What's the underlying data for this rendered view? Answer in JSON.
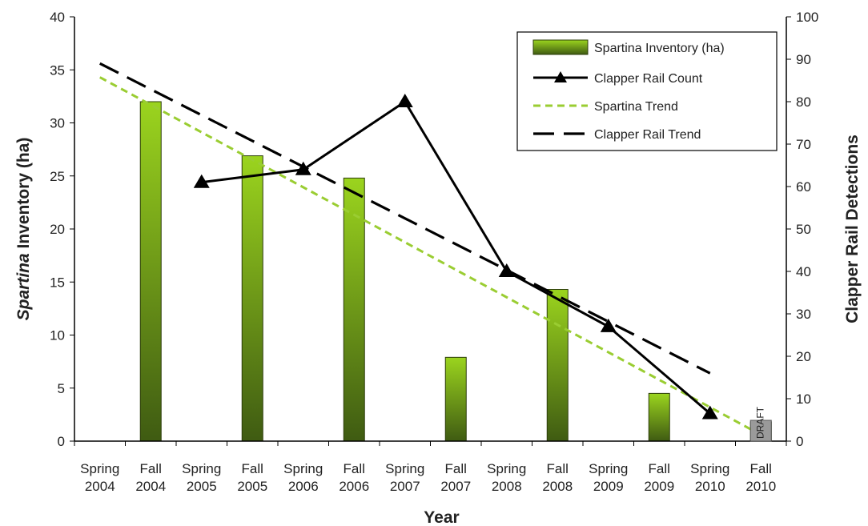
{
  "chart_data": {
    "type": "bar",
    "categories": [
      [
        "Spring",
        "2004"
      ],
      [
        "Fall",
        "2004"
      ],
      [
        "Spring",
        "2005"
      ],
      [
        "Fall",
        "2005"
      ],
      [
        "Spring",
        "2006"
      ],
      [
        "Fall",
        "2006"
      ],
      [
        "Spring",
        "2007"
      ],
      [
        "Fall",
        "2007"
      ],
      [
        "Spring",
        "2008"
      ],
      [
        "Fall",
        "2008"
      ],
      [
        "Spring",
        "2009"
      ],
      [
        "Fall",
        "2009"
      ],
      [
        "Spring",
        "2010"
      ],
      [
        "Fall",
        "2010"
      ]
    ],
    "series": [
      {
        "name": "Spartina Inventory  (ha)",
        "type": "bar",
        "axis": "left",
        "values": [
          null,
          32,
          null,
          26.9,
          null,
          24.8,
          null,
          7.9,
          null,
          14.3,
          null,
          4.5,
          null,
          1.8
        ]
      },
      {
        "name": "Clapper Rail Count",
        "type": "line",
        "axis": "right",
        "values": [
          null,
          null,
          61,
          null,
          64,
          null,
          80,
          null,
          40,
          null,
          27,
          null,
          6.5,
          null
        ]
      },
      {
        "name": "Spartina Trend",
        "type": "trend",
        "axis": "left",
        "from": 34.3,
        "to": 0.6
      },
      {
        "name": "Clapper Rail Trend",
        "type": "trend",
        "axis": "right",
        "from": 89,
        "to": 16
      }
    ],
    "y_left": {
      "label_italic": "Spartina",
      "label_rest": " Inventory (ha)",
      "ylim": [
        0,
        40
      ],
      "ticks": [
        0,
        5,
        10,
        15,
        20,
        25,
        30,
        35,
        40
      ]
    },
    "y_right": {
      "label": "Clapper Rail Detections",
      "ylim": [
        0,
        100
      ],
      "ticks": [
        0,
        10,
        20,
        30,
        40,
        50,
        60,
        70,
        80,
        90,
        100
      ]
    },
    "xlabel": "Year",
    "legend_position": "top-right",
    "grid": false,
    "watermark": "DRAFT",
    "colors": {
      "bar_top": "#9bd41e",
      "bar_bottom": "#3f5b12",
      "bar_stroke": "#2c3d0a",
      "rail_line": "#000000",
      "spartina_trend": "#9acd32",
      "rail_trend": "#000000",
      "draft_box": "#9a9a9a"
    }
  }
}
